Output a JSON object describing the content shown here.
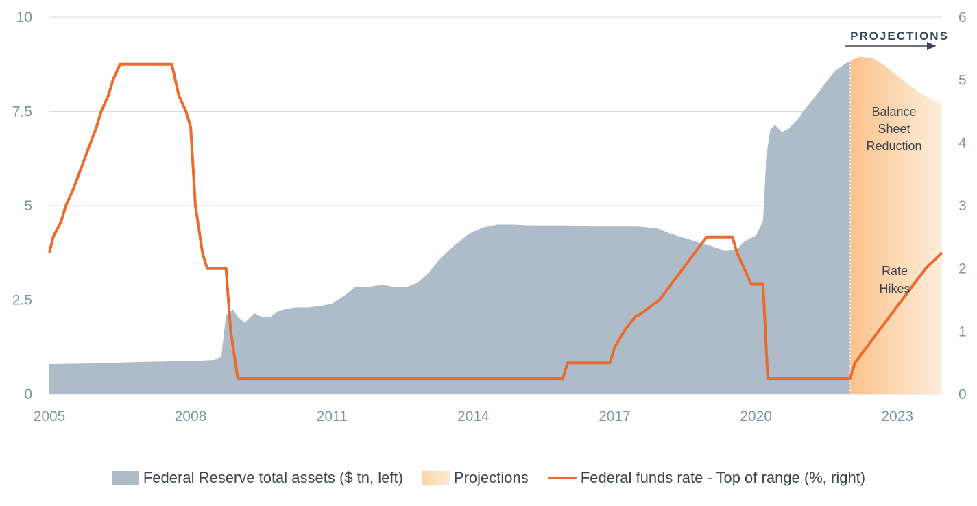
{
  "chart_data": {
    "type": "area+line",
    "title": "",
    "annotations": {
      "projections_header": "PROJECTIONS",
      "balance_sheet": [
        "Balance",
        "Sheet",
        "Reduction"
      ],
      "rate_hikes": [
        "Rate",
        "Hikes"
      ]
    },
    "x_ticks": [
      2005,
      2008,
      2011,
      2014,
      2017,
      2020,
      2023
    ],
    "xlim": [
      2005.0,
      2023.95
    ],
    "projection_start": 2022.0,
    "y_left": {
      "label": "Federal Reserve total assets ($ tn, left)",
      "lim": [
        0,
        10
      ],
      "ticks": [
        0,
        2.5,
        5,
        7.5,
        10
      ],
      "tick_labels": [
        "0",
        "2.5",
        "5",
        "7.5",
        "10"
      ]
    },
    "y_right": {
      "label": "Federal funds rate - Top of range (%, right)",
      "lim": [
        0,
        6
      ],
      "ticks": [
        0,
        1,
        2,
        3,
        4,
        5,
        6
      ],
      "tick_labels": [
        "0",
        "1",
        "2",
        "3",
        "4",
        "5",
        "6"
      ]
    },
    "series": [
      {
        "name": "Federal Reserve total assets ($ tn, left)",
        "axis": "left",
        "kind": "area",
        "color": "#adbcc8",
        "x": [
          2005.0,
          2006.0,
          2007.0,
          2008.0,
          2008.5,
          2008.65,
          2008.75,
          2008.9,
          2009.0,
          2009.15,
          2009.35,
          2009.5,
          2009.7,
          2009.85,
          2010.0,
          2010.2,
          2010.5,
          2010.8,
          2011.0,
          2011.3,
          2011.5,
          2011.75,
          2011.95,
          2012.1,
          2012.3,
          2012.6,
          2012.8,
          2013.0,
          2013.3,
          2013.6,
          2013.9,
          2014.2,
          2014.5,
          2014.85,
          2015.2,
          2015.6,
          2016.0,
          2016.5,
          2017.0,
          2017.5,
          2017.9,
          2018.2,
          2018.6,
          2019.0,
          2019.35,
          2019.6,
          2019.75,
          2019.9,
          2020.0,
          2020.15,
          2020.22,
          2020.3,
          2020.4,
          2020.55,
          2020.7,
          2020.9,
          2021.0,
          2021.2,
          2021.5,
          2021.7,
          2022.0
        ],
        "values": [
          0.8,
          0.82,
          0.86,
          0.88,
          0.91,
          1.0,
          2.1,
          2.25,
          2.05,
          1.9,
          2.15,
          2.05,
          2.05,
          2.2,
          2.25,
          2.3,
          2.3,
          2.35,
          2.4,
          2.65,
          2.85,
          2.85,
          2.88,
          2.9,
          2.85,
          2.85,
          2.95,
          3.15,
          3.6,
          3.95,
          4.25,
          4.42,
          4.5,
          4.5,
          4.48,
          4.48,
          4.48,
          4.45,
          4.45,
          4.45,
          4.4,
          4.25,
          4.1,
          3.95,
          3.8,
          3.85,
          4.05,
          4.15,
          4.2,
          4.6,
          6.3,
          7.0,
          7.15,
          6.95,
          7.05,
          7.3,
          7.5,
          7.8,
          8.3,
          8.6,
          8.85
        ]
      },
      {
        "name": "Projections",
        "axis": "left",
        "kind": "area",
        "color": "#fbd3a8",
        "x": [
          2022.0,
          2022.2,
          2022.45,
          2022.7,
          2023.0,
          2023.3,
          2023.6,
          2023.95
        ],
        "values": [
          8.85,
          8.95,
          8.92,
          8.75,
          8.45,
          8.15,
          7.9,
          7.7
        ]
      },
      {
        "name": "Federal funds rate - Top of range (%, right)",
        "axis": "right",
        "kind": "line",
        "color": "#ed6a2d",
        "x": [
          2005.0,
          2005.08,
          2005.25,
          2005.35,
          2005.5,
          2005.75,
          2006.0,
          2006.1,
          2006.25,
          2006.35,
          2006.5,
          2007.6,
          2007.75,
          2007.9,
          2008.0,
          2008.1,
          2008.25,
          2008.35,
          2008.5,
          2008.6,
          2008.75,
          2008.85,
          2009.0,
          2010.0,
          2012.0,
          2014.0,
          2015.9,
          2016.0,
          2016.9,
          2017.0,
          2017.2,
          2017.45,
          2017.5,
          2017.95,
          2018.2,
          2018.45,
          2018.7,
          2018.95,
          2019.5,
          2019.6,
          2019.75,
          2019.9,
          2020.15,
          2020.25,
          2020.35,
          2021.0,
          2022.0,
          2022.1,
          2022.35,
          2022.6,
          2022.85,
          2023.1,
          2023.35,
          2023.6,
          2023.95
        ],
        "values": [
          2.25,
          2.5,
          2.75,
          3.0,
          3.25,
          3.75,
          4.25,
          4.5,
          4.75,
          5.0,
          5.25,
          5.25,
          4.75,
          4.5,
          4.25,
          3.0,
          2.25,
          2.0,
          2.0,
          2.0,
          2.0,
          1.0,
          0.25,
          0.25,
          0.25,
          0.25,
          0.25,
          0.5,
          0.5,
          0.75,
          1.0,
          1.25,
          1.25,
          1.5,
          1.75,
          2.0,
          2.25,
          2.5,
          2.5,
          2.25,
          2.0,
          1.75,
          1.75,
          0.25,
          0.25,
          0.25,
          0.25,
          0.5,
          0.75,
          1.0,
          1.25,
          1.5,
          1.75,
          2.0,
          2.25
        ]
      }
    ],
    "legend": {
      "position": "bottom",
      "items": [
        {
          "label": "Federal Reserve total assets ($ tn, left)",
          "swatch": "area"
        },
        {
          "label": "Projections",
          "swatch": "projection"
        },
        {
          "label": "Federal funds rate - Top of range (%, right)",
          "swatch": "line"
        }
      ]
    },
    "grid": true,
    "colors": {
      "assets": "#adbcc8",
      "projection_strong": "#fbc28a",
      "projection_light": "#fdeedd",
      "rate": "#ed6a2d",
      "grid": "#d9dde1",
      "tick": "#7f94a6"
    }
  }
}
